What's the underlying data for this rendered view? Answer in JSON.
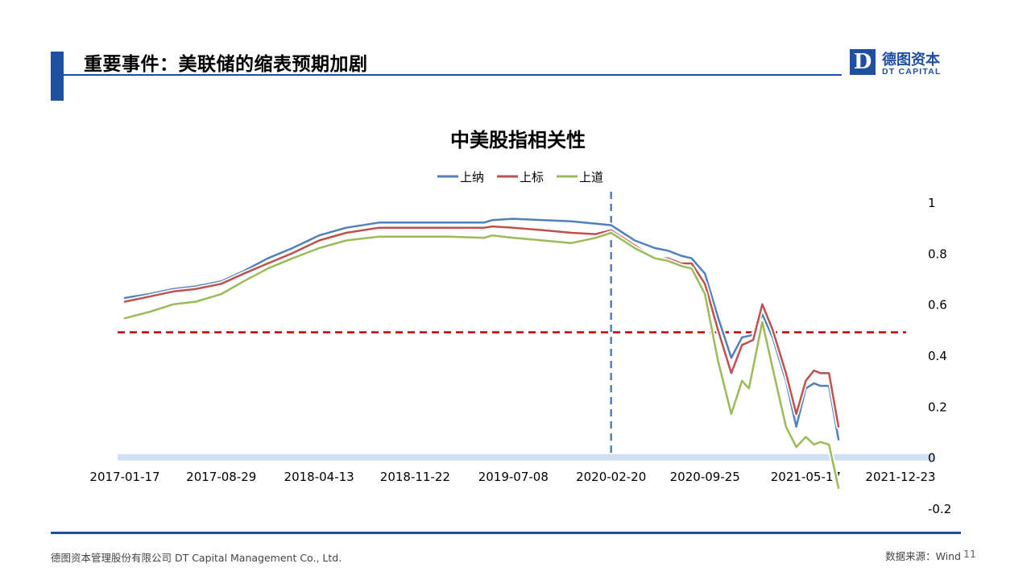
{
  "header": {
    "title": "重要事件：美联储的缩表预期加剧",
    "logo_mark": "D",
    "logo_cn": "德图资本",
    "logo_en": "DT CAPITAL"
  },
  "footer": {
    "company": "德图资本管理股份有限公司  DT Capital  Management  Co., Ltd.",
    "source": "数据来源：Wind",
    "page": "11"
  },
  "colors": {
    "brand": "#1e4fa0",
    "nasdaq": "#4f81bd",
    "sp500": "#c0504d",
    "dow": "#9bbb59",
    "threshold": "#c00000"
  },
  "chart_data": {
    "type": "line",
    "title": "中美股指相关性",
    "x_ticks": [
      "2017-01-17",
      "2017-08-29",
      "2018-04-13",
      "2018-11-22",
      "2019-07-08",
      "2020-02-20",
      "2020-09-25",
      "2021-05-17",
      "2021-12-23"
    ],
    "y_ticks": [
      "1",
      "0.8",
      "0.6",
      "0.4",
      "0.2",
      "0",
      "-0.2"
    ],
    "ylim": [
      -0.2,
      1.0
    ],
    "xlim": [
      "2017-01-17",
      "2021-12-23"
    ],
    "legend_position": "top-center",
    "reference_lines": [
      {
        "type": "horizontal",
        "value": 0.49,
        "style": "dashed",
        "color": "#c00000"
      },
      {
        "type": "vertical",
        "x": "2020-02-20",
        "style": "dashed",
        "color": "#4f81bd"
      }
    ],
    "series": [
      {
        "name": "上纳",
        "color": "#4f81bd",
        "points": [
          [
            "2017-01-17",
            0.625
          ],
          [
            "2017-03-15",
            0.64
          ],
          [
            "2017-05-10",
            0.66
          ],
          [
            "2017-07-01",
            0.67
          ],
          [
            "2017-08-29",
            0.69
          ],
          [
            "2017-10-20",
            0.73
          ],
          [
            "2017-12-15",
            0.78
          ],
          [
            "2018-02-10",
            0.82
          ],
          [
            "2018-04-13",
            0.87
          ],
          [
            "2018-06-15",
            0.9
          ],
          [
            "2018-08-30",
            0.92
          ],
          [
            "2018-11-22",
            0.92
          ],
          [
            "2019-02-10",
            0.92
          ],
          [
            "2019-05-01",
            0.92
          ],
          [
            "2019-05-20",
            0.93
          ],
          [
            "2019-07-08",
            0.935
          ],
          [
            "2019-09-15",
            0.93
          ],
          [
            "2019-11-20",
            0.925
          ],
          [
            "2020-02-20",
            0.91
          ],
          [
            "2020-04-15",
            0.85
          ],
          [
            "2020-06-01",
            0.82
          ],
          [
            "2020-07-01",
            0.81
          ],
          [
            "2020-08-01",
            0.79
          ],
          [
            "2020-08-25",
            0.78
          ],
          [
            "2020-09-25",
            0.72
          ],
          [
            "2020-10-25",
            0.55
          ],
          [
            "2020-11-25",
            0.39
          ],
          [
            "2020-12-20",
            0.47
          ],
          [
            "2021-01-15",
            0.48
          ],
          [
            "2021-02-05",
            0.56
          ],
          [
            "2021-03-01",
            0.47
          ],
          [
            "2021-04-01",
            0.3
          ],
          [
            "2021-04-25",
            0.12
          ],
          [
            "2021-05-17",
            0.27
          ],
          [
            "2021-06-05",
            0.29
          ],
          [
            "2021-06-20",
            0.28
          ],
          [
            "2021-07-10",
            0.28
          ],
          [
            "2021-08-01",
            0.07
          ]
        ]
      },
      {
        "name": "上标",
        "color": "#c0504d",
        "points": [
          [
            "2017-01-17",
            0.61
          ],
          [
            "2017-03-15",
            0.63
          ],
          [
            "2017-05-10",
            0.65
          ],
          [
            "2017-07-01",
            0.66
          ],
          [
            "2017-08-29",
            0.68
          ],
          [
            "2017-10-20",
            0.72
          ],
          [
            "2017-12-15",
            0.76
          ],
          [
            "2018-02-10",
            0.8
          ],
          [
            "2018-04-13",
            0.85
          ],
          [
            "2018-06-15",
            0.88
          ],
          [
            "2018-08-30",
            0.9
          ],
          [
            "2018-11-22",
            0.9
          ],
          [
            "2019-02-10",
            0.9
          ],
          [
            "2019-05-01",
            0.9
          ],
          [
            "2019-05-20",
            0.905
          ],
          [
            "2019-07-08",
            0.9
          ],
          [
            "2019-09-15",
            0.89
          ],
          [
            "2019-11-20",
            0.88
          ],
          [
            "2020-01-15",
            0.875
          ],
          [
            "2020-02-20",
            0.89
          ],
          [
            "2020-04-15",
            0.83
          ],
          [
            "2020-06-01",
            0.78
          ],
          [
            "2020-07-01",
            0.78
          ],
          [
            "2020-08-01",
            0.76
          ],
          [
            "2020-08-25",
            0.76
          ],
          [
            "2020-09-25",
            0.68
          ],
          [
            "2020-10-25",
            0.5
          ],
          [
            "2020-11-25",
            0.33
          ],
          [
            "2020-12-20",
            0.44
          ],
          [
            "2021-01-15",
            0.46
          ],
          [
            "2021-02-05",
            0.6
          ],
          [
            "2021-03-01",
            0.5
          ],
          [
            "2021-04-01",
            0.33
          ],
          [
            "2021-04-25",
            0.17
          ],
          [
            "2021-05-17",
            0.3
          ],
          [
            "2021-06-05",
            0.34
          ],
          [
            "2021-06-20",
            0.33
          ],
          [
            "2021-07-10",
            0.33
          ],
          [
            "2021-08-01",
            0.12
          ]
        ]
      },
      {
        "name": "上道",
        "color": "#9bbb59",
        "points": [
          [
            "2017-01-17",
            0.545
          ],
          [
            "2017-03-15",
            0.57
          ],
          [
            "2017-05-10",
            0.6
          ],
          [
            "2017-07-01",
            0.61
          ],
          [
            "2017-08-29",
            0.64
          ],
          [
            "2017-10-20",
            0.69
          ],
          [
            "2017-12-15",
            0.74
          ],
          [
            "2018-02-10",
            0.78
          ],
          [
            "2018-04-13",
            0.82
          ],
          [
            "2018-06-15",
            0.85
          ],
          [
            "2018-08-30",
            0.865
          ],
          [
            "2018-11-22",
            0.865
          ],
          [
            "2019-02-10",
            0.865
          ],
          [
            "2019-05-01",
            0.86
          ],
          [
            "2019-05-20",
            0.87
          ],
          [
            "2019-07-08",
            0.86
          ],
          [
            "2019-09-15",
            0.85
          ],
          [
            "2019-11-20",
            0.84
          ],
          [
            "2020-01-15",
            0.86
          ],
          [
            "2020-02-20",
            0.88
          ],
          [
            "2020-04-15",
            0.82
          ],
          [
            "2020-06-01",
            0.78
          ],
          [
            "2020-07-01",
            0.77
          ],
          [
            "2020-08-01",
            0.75
          ],
          [
            "2020-08-25",
            0.74
          ],
          [
            "2020-09-25",
            0.64
          ],
          [
            "2020-10-25",
            0.38
          ],
          [
            "2020-11-25",
            0.17
          ],
          [
            "2020-12-20",
            0.3
          ],
          [
            "2021-01-05",
            0.27
          ],
          [
            "2021-02-05",
            0.53
          ],
          [
            "2021-03-01",
            0.35
          ],
          [
            "2021-04-01",
            0.12
          ],
          [
            "2021-04-25",
            0.04
          ],
          [
            "2021-05-17",
            0.08
          ],
          [
            "2021-06-05",
            0.05
          ],
          [
            "2021-06-20",
            0.06
          ],
          [
            "2021-07-10",
            0.05
          ],
          [
            "2021-08-01",
            -0.12
          ]
        ]
      }
    ]
  }
}
